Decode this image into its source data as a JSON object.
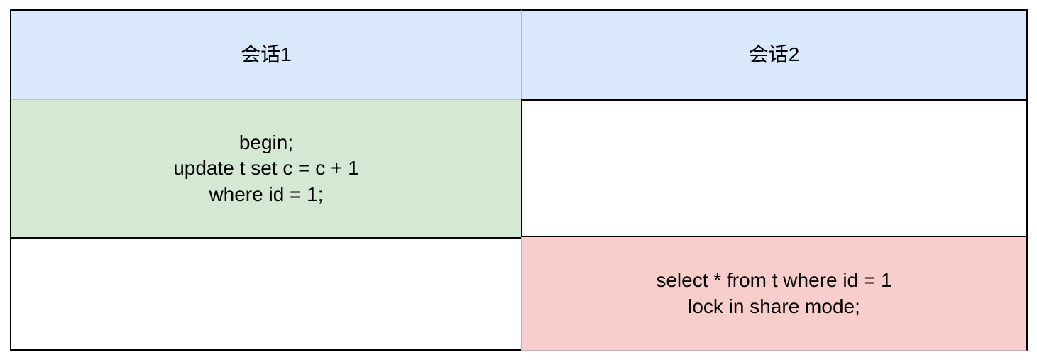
{
  "table": {
    "headers": [
      "会话1",
      "会话2"
    ],
    "rows": [
      {
        "session1": "begin;\nupdate t set c = c + 1\nwhere id = 1;",
        "session2": ""
      },
      {
        "session1": "",
        "session2": "select * from t where id = 1\nlock in share mode;"
      }
    ]
  },
  "colors": {
    "header_bg": "#dae8fc",
    "session1_statement_bg": "#d5e8d4",
    "session2_statement_bg": "#f8cecc",
    "empty_bg": "#ffffff",
    "border": "#000000"
  }
}
